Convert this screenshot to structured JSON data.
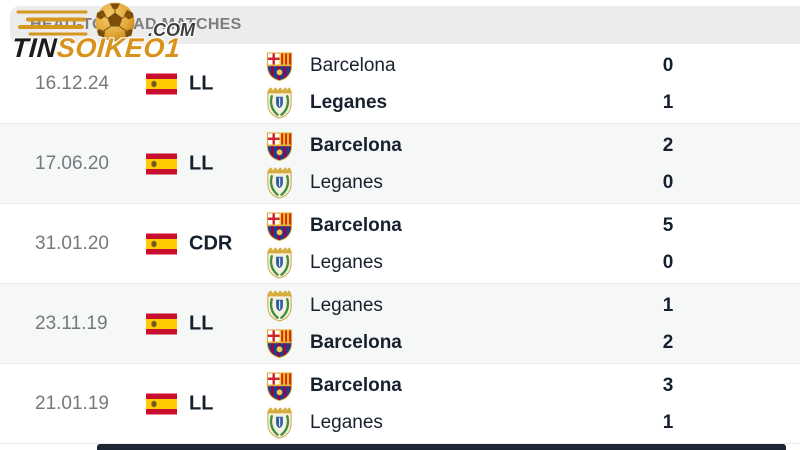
{
  "header": {
    "title": "HEAD-TO-HEAD MATCHES"
  },
  "logo": {
    "brand_prefix": "TIN",
    "brand_suffix": "SOIKEO1",
    "domain": ".COM",
    "ball_icon": "football-icon",
    "gold": "#D9921A",
    "dark": "#1C1C1C"
  },
  "matches": [
    {
      "date": "16.12.24",
      "competition": "LL",
      "flag": "spain-flag",
      "teams": [
        {
          "name": "Barcelona",
          "crest": "barcelona-crest",
          "score": "0",
          "winner": false
        },
        {
          "name": "Leganes",
          "crest": "leganes-crest",
          "score": "1",
          "winner": true
        }
      ]
    },
    {
      "date": "17.06.20",
      "competition": "LL",
      "flag": "spain-flag",
      "teams": [
        {
          "name": "Barcelona",
          "crest": "barcelona-crest",
          "score": "2",
          "winner": true
        },
        {
          "name": "Leganes",
          "crest": "leganes-crest",
          "score": "0",
          "winner": false
        }
      ]
    },
    {
      "date": "31.01.20",
      "competition": "CDR",
      "flag": "spain-flag",
      "teams": [
        {
          "name": "Barcelona",
          "crest": "barcelona-crest",
          "score": "5",
          "winner": true
        },
        {
          "name": "Leganes",
          "crest": "leganes-crest",
          "score": "0",
          "winner": false
        }
      ]
    },
    {
      "date": "23.11.19",
      "competition": "LL",
      "flag": "spain-flag",
      "teams": [
        {
          "name": "Leganes",
          "crest": "leganes-crest",
          "score": "1",
          "winner": false
        },
        {
          "name": "Barcelona",
          "crest": "barcelona-crest",
          "score": "2",
          "winner": true
        }
      ]
    },
    {
      "date": "21.01.19",
      "competition": "LL",
      "flag": "spain-flag",
      "teams": [
        {
          "name": "Barcelona",
          "crest": "barcelona-crest",
          "score": "3",
          "winner": true
        },
        {
          "name": "Leganes",
          "crest": "leganes-crest",
          "score": "1",
          "winner": false
        }
      ]
    }
  ],
  "colors": {
    "header_bg": "#ECECEC",
    "header_text": "#7E7E7E",
    "row_alt_bg": "#F6F7F7",
    "divider": "#EBECEC",
    "text_dark": "#17212D",
    "text_gray": "#75787D",
    "accent_gold": "#D9921A",
    "bottom_bar": "#1D2733"
  }
}
